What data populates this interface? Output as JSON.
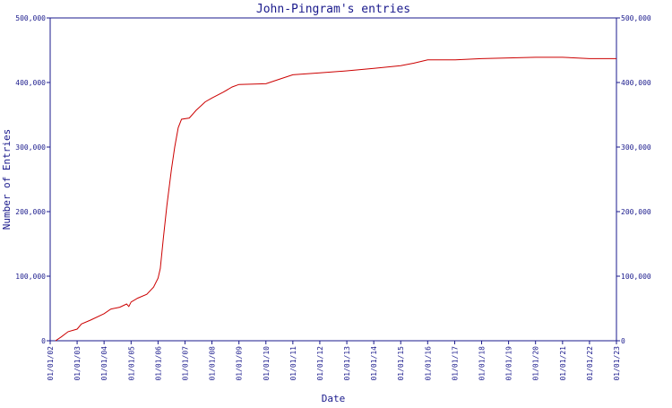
{
  "chart_data": {
    "type": "line",
    "title": "John-Pingram's entries",
    "xlabel": "Date",
    "ylabel": "Number of Entries",
    "x_ticks": [
      "01/01/02",
      "01/01/03",
      "01/01/04",
      "01/01/05",
      "01/01/06",
      "01/01/07",
      "01/01/08",
      "01/01/09",
      "01/01/10",
      "01/01/11",
      "01/01/12",
      "01/01/13",
      "01/01/14",
      "01/01/15",
      "01/01/16",
      "01/01/17",
      "01/01/18",
      "01/01/19",
      "01/01/20",
      "01/01/21",
      "01/01/22",
      "01/01/23"
    ],
    "y_ticks": [
      0,
      100000,
      200000,
      300000,
      400000,
      500000
    ],
    "y_tick_labels": [
      "0",
      "100,000",
      "200,000",
      "300,000",
      "400,000",
      "500,000"
    ],
    "xlim": [
      "2002-01-01",
      "2023-01-01"
    ],
    "ylim": [
      0,
      500000
    ],
    "grid": false,
    "line_color": "#cc0000",
    "axis_color": "#1a1a8c",
    "series": [
      {
        "points": [
          [
            "2002-03-15",
            0
          ],
          [
            "2002-06-01",
            6000
          ],
          [
            "2002-09-01",
            14000
          ],
          [
            "2003-01-01",
            18000
          ],
          [
            "2003-03-01",
            26000
          ],
          [
            "2003-07-01",
            32000
          ],
          [
            "2004-01-01",
            42000
          ],
          [
            "2004-04-01",
            49000
          ],
          [
            "2004-08-01",
            52000
          ],
          [
            "2004-11-01",
            57000
          ],
          [
            "2004-12-01",
            53000
          ],
          [
            "2005-01-01",
            60000
          ],
          [
            "2005-04-01",
            66000
          ],
          [
            "2005-08-01",
            72000
          ],
          [
            "2005-11-01",
            83000
          ],
          [
            "2006-01-01",
            97000
          ],
          [
            "2006-02-01",
            112000
          ],
          [
            "2006-03-15",
            160000
          ],
          [
            "2006-05-01",
            210000
          ],
          [
            "2006-07-01",
            265000
          ],
          [
            "2006-08-15",
            300000
          ],
          [
            "2006-10-01",
            330000
          ],
          [
            "2006-11-15",
            343000
          ],
          [
            "2007-03-01",
            345000
          ],
          [
            "2007-06-01",
            357000
          ],
          [
            "2007-10-01",
            370000
          ],
          [
            "2008-01-01",
            376000
          ],
          [
            "2008-06-01",
            385000
          ],
          [
            "2008-10-01",
            393000
          ],
          [
            "2009-01-01",
            397000
          ],
          [
            "2010-01-01",
            398000
          ],
          [
            "2010-07-01",
            405000
          ],
          [
            "2011-01-01",
            412000
          ],
          [
            "2012-01-01",
            415000
          ],
          [
            "2013-01-01",
            418000
          ],
          [
            "2014-01-01",
            422000
          ],
          [
            "2015-01-01",
            426000
          ],
          [
            "2015-07-01",
            430000
          ],
          [
            "2016-01-01",
            435000
          ],
          [
            "2017-01-01",
            435000
          ],
          [
            "2018-01-01",
            437000
          ],
          [
            "2019-01-01",
            438000
          ],
          [
            "2020-01-01",
            439000
          ],
          [
            "2021-01-01",
            439000
          ],
          [
            "2022-01-01",
            437000
          ],
          [
            "2023-01-01",
            437000
          ]
        ]
      }
    ]
  }
}
